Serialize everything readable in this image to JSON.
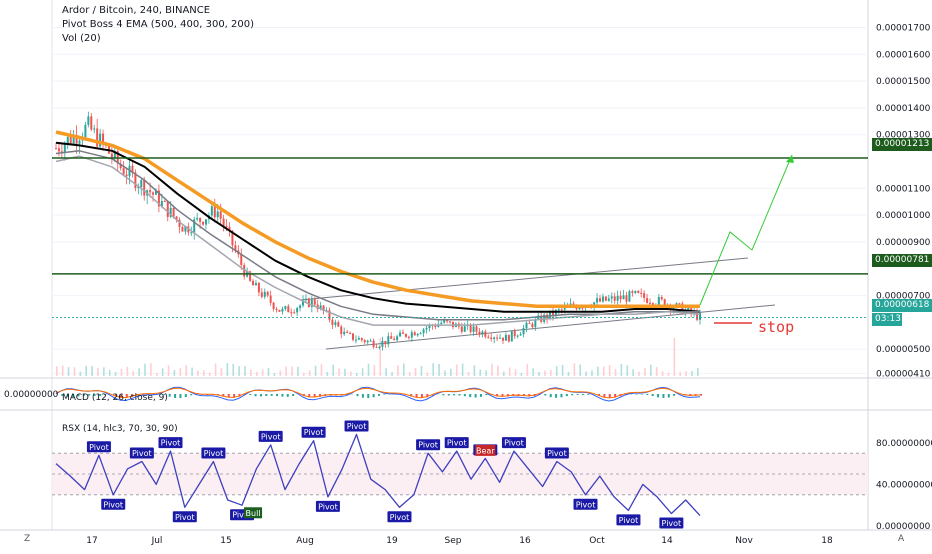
{
  "legend": {
    "title": "Ardor / Bitcoin, 240, BINANCE",
    "ema": "Pivot Boss 4 EMA (500, 400, 300, 200)",
    "vol": "Vol (20)"
  },
  "price_axis": {
    "ticks": [
      "0.00001700",
      "0.00001600",
      "0.00001500",
      "0.00001400",
      "0.00001300",
      "0.00001100",
      "0.00001000",
      "0.00000900",
      "0.00000700",
      "0.00000500",
      "0.00000410"
    ],
    "levels": [
      1.213e-05,
      7.81e-06
    ],
    "level_labels": [
      "0.00001213",
      "0.00000781"
    ],
    "current": "0.00000618",
    "countdown": "03:13"
  },
  "annotation": {
    "stop": "stop"
  },
  "macd": {
    "label": "MACD (12, 26, close, 9)",
    "axis_value": "0.00000000"
  },
  "rsx": {
    "label": "RSX (14, hlc3, 70, 30, 90)",
    "ticks": [
      "80.00000000",
      "40.00000000",
      "0.00000000"
    ],
    "upper": 70,
    "lower": 30,
    "pivot_text": "Pivot",
    "bull_text": "Bull",
    "bear_text": "Bear"
  },
  "x_axis": {
    "labels": [
      "17",
      "Jul",
      "15",
      "Aug",
      "19",
      "Sep",
      "16",
      "Oct",
      "14",
      "Nov",
      "18"
    ]
  },
  "corners": {
    "left": "Z",
    "right": "A"
  },
  "colors": {
    "ema500": "#f59a23",
    "ema400": "#000000",
    "ema300": "#787b86",
    "ema200": "#a3a6af",
    "level": "#1e5c1e",
    "rsx": "#3f3fbf",
    "stop": "#e53935",
    "up": "#26a69a",
    "down": "#ef5350",
    "arrow": "#33cc33"
  },
  "chart_data": [
    {
      "type": "line",
      "title": "Ardor / Bitcoin, 240, BINANCE",
      "xlabel": "",
      "ylabel": "",
      "x": [
        "2019-06-05",
        "2019-06-10",
        "2019-06-17",
        "2019-06-24",
        "2019-07-01",
        "2019-07-08",
        "2019-07-15",
        "2019-07-22",
        "2019-07-29",
        "2019-08-05",
        "2019-08-12",
        "2019-08-19",
        "2019-08-26",
        "2019-09-02",
        "2019-09-09",
        "2019-09-16",
        "2019-09-23",
        "2019-09-30",
        "2019-10-07",
        "2019-10-14",
        "2019-10-21"
      ],
      "ylim": [
        4e-06,
        1.78e-05
      ],
      "series": [
        {
          "name": "Close",
          "values": [
            1.25e-05,
            1.33e-05,
            1.18e-05,
            1.08e-05,
            9.5e-06,
            1.02e-05,
            7.5e-06,
            6.4e-06,
            6.8e-06,
            5.5e-06,
            5.2e-06,
            5.6e-06,
            6e-06,
            5.7e-06,
            5.4e-06,
            6.1e-06,
            6.6e-06,
            6.8e-06,
            7e-06,
            6.7e-06,
            6.2e-06
          ]
        },
        {
          "name": "EMA 500",
          "values": [
            1.31e-05,
            1.29e-05,
            1.26e-05,
            1.21e-05,
            1.13e-05,
            1.05e-05,
            9.7e-06,
            9e-06,
            8.4e-06,
            7.9e-06,
            7.5e-06,
            7.2e-06,
            7e-06,
            6.8e-06,
            6.7e-06,
            6.6e-06,
            6.6e-06,
            6.6e-06,
            6.6e-06,
            6.6e-06,
            6.6e-06
          ]
        },
        {
          "name": "EMA 400",
          "values": [
            1.27e-05,
            1.26e-05,
            1.24e-05,
            1.18e-05,
            1.08e-05,
            9.9e-06,
            9.1e-06,
            8.3e-06,
            7.7e-06,
            7.2e-06,
            6.9e-06,
            6.7e-06,
            6.6e-06,
            6.5e-06,
            6.4e-06,
            6.4e-06,
            6.4e-06,
            6.4e-06,
            6.5e-06,
            6.5e-06,
            6.4e-06
          ]
        },
        {
          "name": "EMA 300",
          "values": [
            1.23e-05,
            1.24e-05,
            1.21e-05,
            1.13e-05,
            1.02e-05,
            9.3e-06,
            8.5e-06,
            7.7e-06,
            7.1e-06,
            6.6e-06,
            6.3e-06,
            6.2e-06,
            6.1e-06,
            6.1e-06,
            6.1e-06,
            6.2e-06,
            6.3e-06,
            6.3e-06,
            6.4e-06,
            6.4e-06,
            6.4e-06
          ]
        },
        {
          "name": "EMA 200",
          "values": [
            1.2e-05,
            1.22e-05,
            1.18e-05,
            1.09e-05,
            9.8e-06,
            8.9e-06,
            8e-06,
            7.3e-06,
            6.7e-06,
            6.2e-06,
            5.9e-06,
            5.9e-06,
            5.9e-06,
            5.9e-06,
            6e-06,
            6.1e-06,
            6.2e-06,
            6.3e-06,
            6.3e-06,
            6.4e-06,
            6.3e-06
          ]
        }
      ]
    },
    {
      "type": "line",
      "title": "RSX (14, hlc3, 70, 30, 90)",
      "xlabel": "",
      "ylabel": "",
      "ylim": [
        0,
        100
      ],
      "series": [
        {
          "name": "RSX",
          "values": [
            60,
            48,
            35,
            68,
            30,
            55,
            62,
            40,
            72,
            18,
            40,
            62,
            25,
            20,
            55,
            78,
            35,
            60,
            82,
            28,
            55,
            88,
            45,
            35,
            18,
            30,
            70,
            52,
            72,
            45,
            65,
            42,
            72,
            55,
            38,
            62,
            52,
            30,
            48,
            28,
            15,
            40,
            28,
            12,
            25,
            10
          ]
        }
      ]
    }
  ]
}
